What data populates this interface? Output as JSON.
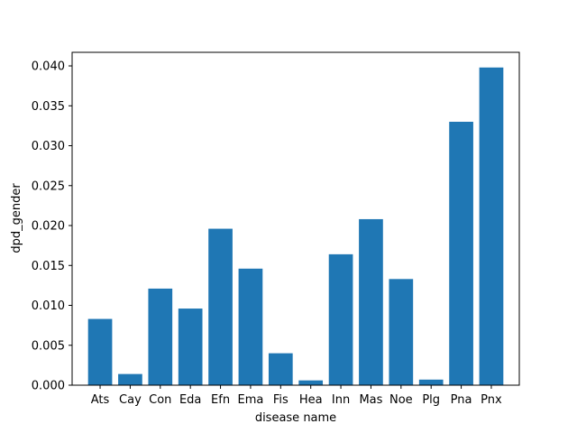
{
  "chart_data": {
    "type": "bar",
    "title": "",
    "xlabel": "disease name",
    "ylabel": "dpd_gender",
    "categories": [
      "Ats",
      "Cay",
      "Con",
      "Eda",
      "Efn",
      "Ema",
      "Fis",
      "Hea",
      "Inn",
      "Mas",
      "Noe",
      "Plg",
      "Pna",
      "Pnx"
    ],
    "values": [
      0.0083,
      0.0014,
      0.0121,
      0.0096,
      0.0196,
      0.0146,
      0.004,
      0.0006,
      0.0164,
      0.0208,
      0.0133,
      0.0007,
      0.033,
      0.0398
    ],
    "ylim": [
      0,
      0.0417
    ],
    "yticks": [
      "0.000",
      "0.005",
      "0.010",
      "0.015",
      "0.020",
      "0.025",
      "0.030",
      "0.035",
      "0.040"
    ],
    "grid": false,
    "legend": "none",
    "bar_color": "#1f77b4"
  }
}
